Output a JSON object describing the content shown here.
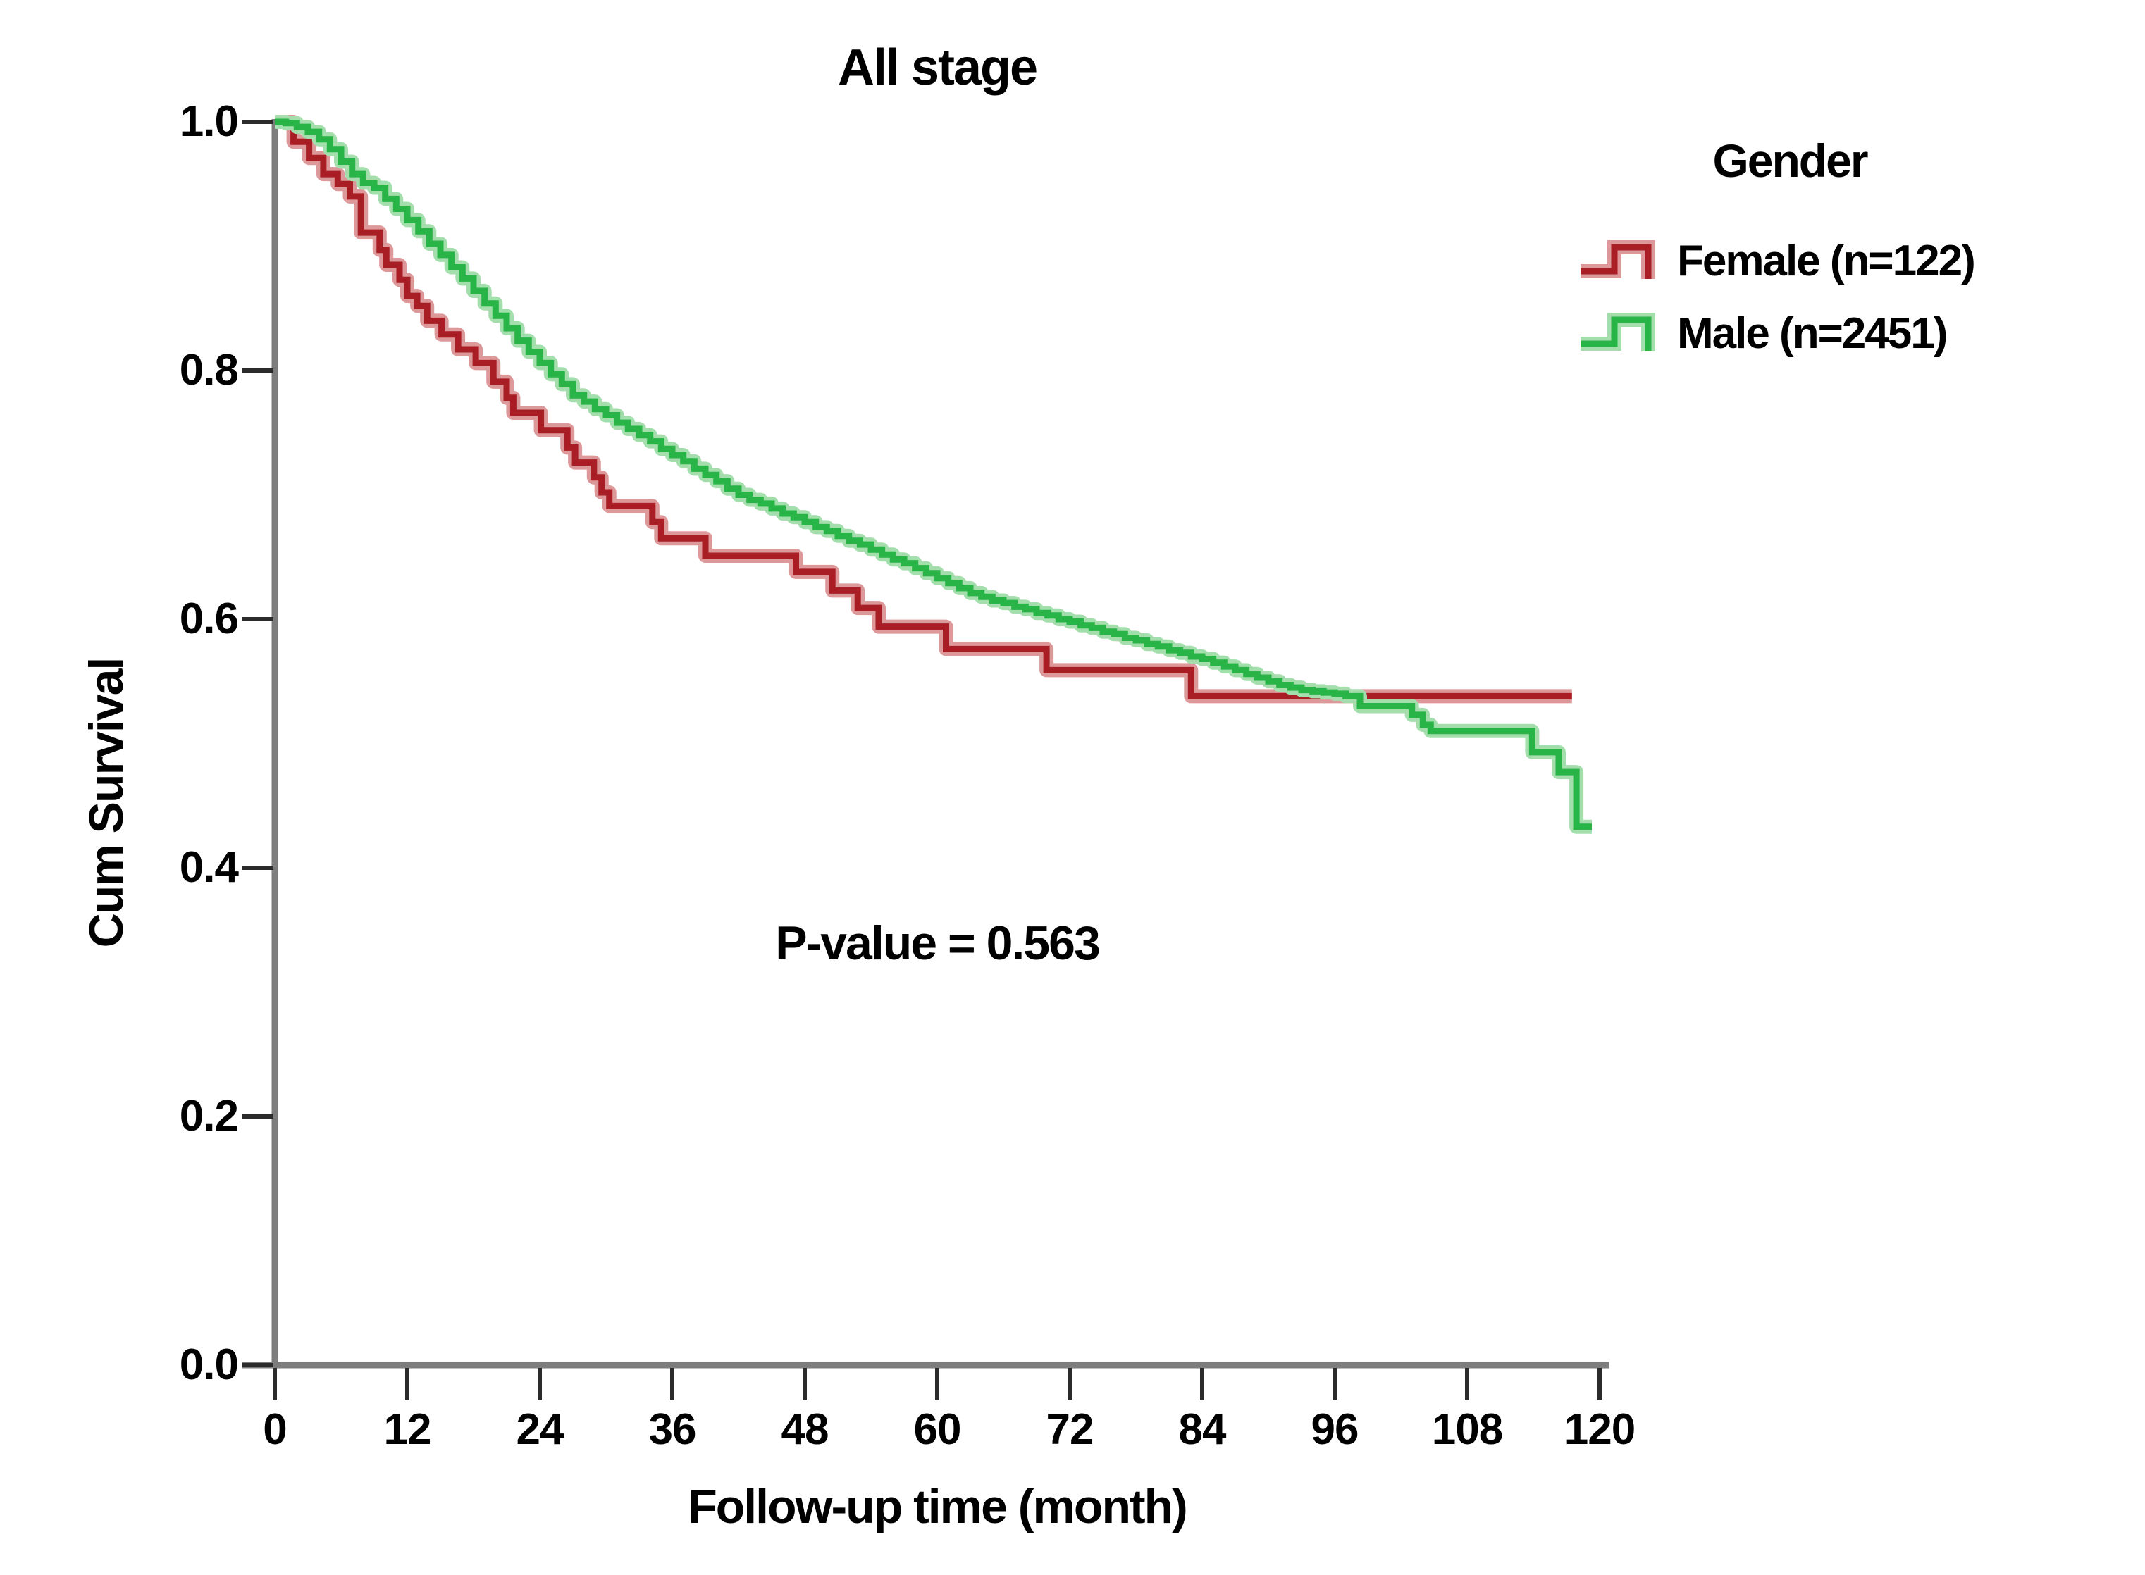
{
  "figure": {
    "background": "#ffffff",
    "axis_color": "#7d7d7d",
    "tick_mark_color": "#2b2b2b",
    "text_color": "#000000"
  },
  "chart_data": {
    "type": "line",
    "subtype": "kaplan-meier-step-survival",
    "title": "All stage",
    "xlabel": "Follow-up time (month)",
    "ylabel": "Cum Survival",
    "annotation": "P-value = 0.563",
    "xlim": [
      0,
      120
    ],
    "ylim": [
      0.0,
      1.0
    ],
    "grid": false,
    "x_ticks": [
      0,
      12,
      24,
      36,
      48,
      60,
      72,
      84,
      96,
      108,
      120
    ],
    "x_tick_labels": [
      "0",
      "12",
      "24",
      "36",
      "48",
      "60",
      "72",
      "84",
      "96",
      "108",
      "120"
    ],
    "y_ticks": [
      0.0,
      0.2,
      0.4,
      0.6,
      0.8,
      1.0
    ],
    "y_tick_labels": [
      "0.0",
      "0.2",
      "0.4",
      "0.6",
      "0.8",
      "1.0"
    ],
    "legend": {
      "title": "Gender",
      "position": "top-right",
      "entries": [
        {
          "label": "Female (n=122)",
          "color": "#a81e24"
        },
        {
          "label": "Male (n=2451)",
          "color": "#28b446"
        }
      ]
    },
    "series": [
      {
        "name": "Female (n=122)",
        "color": "#a81e24",
        "halo_color": "#dd989a",
        "step": true,
        "points": [
          [
            0,
            1.0
          ],
          [
            1.7,
            0.984
          ],
          [
            3.1,
            0.971
          ],
          [
            4.4,
            0.958
          ],
          [
            5.7,
            0.95
          ],
          [
            6.8,
            0.94
          ],
          [
            7.8,
            0.911
          ],
          [
            9.5,
            0.897
          ],
          [
            10.1,
            0.885
          ],
          [
            11.3,
            0.873
          ],
          [
            12.0,
            0.86
          ],
          [
            12.9,
            0.852
          ],
          [
            13.8,
            0.84
          ],
          [
            15.1,
            0.829
          ],
          [
            16.6,
            0.817
          ],
          [
            18.2,
            0.806
          ],
          [
            19.8,
            0.791
          ],
          [
            21.0,
            0.778
          ],
          [
            21.6,
            0.766
          ],
          [
            24.1,
            0.752
          ],
          [
            26.5,
            0.738
          ],
          [
            27.2,
            0.726
          ],
          [
            28.9,
            0.714
          ],
          [
            29.6,
            0.702
          ],
          [
            30.3,
            0.691
          ],
          [
            34.2,
            0.678
          ],
          [
            35.0,
            0.665
          ],
          [
            39.0,
            0.651
          ],
          [
            47.2,
            0.638
          ],
          [
            50.5,
            0.623
          ],
          [
            52.8,
            0.609
          ],
          [
            54.7,
            0.594
          ],
          [
            60.8,
            0.576
          ],
          [
            69.9,
            0.559
          ],
          [
            83.0,
            0.538
          ],
          [
            117.5,
            0.538
          ]
        ]
      },
      {
        "name": "Male (n=2451)",
        "color": "#28b446",
        "halo_color": "#a3deac",
        "step": true,
        "points": [
          [
            0,
            1.0
          ],
          [
            1,
            0.999
          ],
          [
            2,
            0.996
          ],
          [
            3,
            0.992
          ],
          [
            4,
            0.986
          ],
          [
            5,
            0.978
          ],
          [
            6,
            0.968
          ],
          [
            7,
            0.958
          ],
          [
            8,
            0.951
          ],
          [
            9,
            0.947
          ],
          [
            10,
            0.938
          ],
          [
            11,
            0.93
          ],
          [
            12,
            0.921
          ],
          [
            13,
            0.912
          ],
          [
            14,
            0.902
          ],
          [
            15,
            0.893
          ],
          [
            16,
            0.883
          ],
          [
            17,
            0.874
          ],
          [
            18,
            0.864
          ],
          [
            19,
            0.854
          ],
          [
            20,
            0.844
          ],
          [
            21,
            0.834
          ],
          [
            22,
            0.824
          ],
          [
            23,
            0.815
          ],
          [
            24,
            0.806
          ],
          [
            25,
            0.797
          ],
          [
            26,
            0.789
          ],
          [
            27,
            0.78
          ],
          [
            28,
            0.775
          ],
          [
            29,
            0.769
          ],
          [
            30,
            0.764
          ],
          [
            31,
            0.758
          ],
          [
            32,
            0.753
          ],
          [
            33,
            0.748
          ],
          [
            34,
            0.743
          ],
          [
            35,
            0.737
          ],
          [
            36,
            0.732
          ],
          [
            37,
            0.727
          ],
          [
            38,
            0.721
          ],
          [
            39,
            0.716
          ],
          [
            40,
            0.711
          ],
          [
            41,
            0.705
          ],
          [
            42,
            0.7
          ],
          [
            43,
            0.696
          ],
          [
            44,
            0.693
          ],
          [
            45,
            0.689
          ],
          [
            46,
            0.685
          ],
          [
            47,
            0.682
          ],
          [
            48,
            0.678
          ],
          [
            49,
            0.674
          ],
          [
            50,
            0.671
          ],
          [
            51,
            0.667
          ],
          [
            52,
            0.663
          ],
          [
            53,
            0.66
          ],
          [
            54,
            0.656
          ],
          [
            55,
            0.652
          ],
          [
            56,
            0.648
          ],
          [
            57,
            0.645
          ],
          [
            58,
            0.641
          ],
          [
            59,
            0.637
          ],
          [
            60,
            0.633
          ],
          [
            61,
            0.629
          ],
          [
            62,
            0.625
          ],
          [
            63,
            0.621
          ],
          [
            64,
            0.618
          ],
          [
            65,
            0.615
          ],
          [
            66,
            0.613
          ],
          [
            67,
            0.61
          ],
          [
            68,
            0.608
          ],
          [
            69,
            0.605
          ],
          [
            70,
            0.603
          ],
          [
            71,
            0.6
          ],
          [
            72,
            0.598
          ],
          [
            73,
            0.595
          ],
          [
            74,
            0.593
          ],
          [
            75,
            0.59
          ],
          [
            76,
            0.588
          ],
          [
            77,
            0.585
          ],
          [
            78,
            0.583
          ],
          [
            79,
            0.58
          ],
          [
            80,
            0.578
          ],
          [
            81,
            0.575
          ],
          [
            82,
            0.573
          ],
          [
            83,
            0.57
          ],
          [
            84,
            0.568
          ],
          [
            85,
            0.565
          ],
          [
            86,
            0.562
          ],
          [
            87,
            0.559
          ],
          [
            88,
            0.556
          ],
          [
            89,
            0.553
          ],
          [
            90,
            0.55
          ],
          [
            91,
            0.547
          ],
          [
            92,
            0.545
          ],
          [
            93,
            0.543
          ],
          [
            94,
            0.542
          ],
          [
            95,
            0.541
          ],
          [
            96,
            0.54
          ],
          [
            97,
            0.538
          ],
          [
            98.3,
            0.53
          ],
          [
            103.0,
            0.523
          ],
          [
            104.0,
            0.515
          ],
          [
            104.7,
            0.51
          ],
          [
            113.9,
            0.493
          ],
          [
            116.3,
            0.477
          ],
          [
            117.9,
            0.433
          ],
          [
            119.3,
            0.433
          ]
        ]
      }
    ]
  }
}
